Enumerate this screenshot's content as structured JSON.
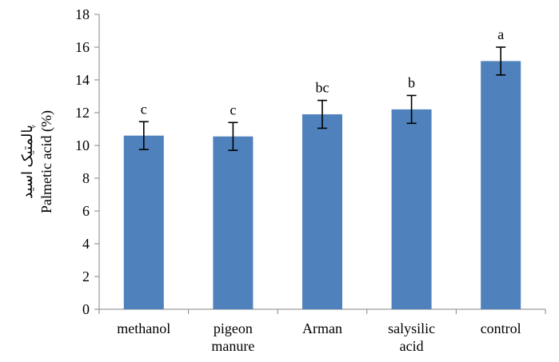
{
  "chart_data": {
    "type": "bar",
    "title": "",
    "ylabel_lines": [
      "پالمتیک اسید",
      "Palmetic acid (%)"
    ],
    "xlabel": "",
    "ylim": [
      0,
      18
    ],
    "yticks": [
      0,
      2,
      4,
      6,
      8,
      10,
      12,
      14,
      16,
      18
    ],
    "categories": [
      [
        "methanol"
      ],
      [
        "pigeon",
        "manure"
      ],
      [
        "Arman"
      ],
      [
        "salysilic",
        "acid"
      ],
      [
        "control"
      ]
    ],
    "values": [
      10.6,
      10.55,
      11.9,
      12.2,
      15.15
    ],
    "error": [
      0.85,
      0.85,
      0.85,
      0.85,
      0.85
    ],
    "significance_letters": [
      "c",
      "c",
      "bc",
      "b",
      "a"
    ],
    "bar_color": "#4F81BD",
    "grid": false,
    "legend": "none"
  }
}
